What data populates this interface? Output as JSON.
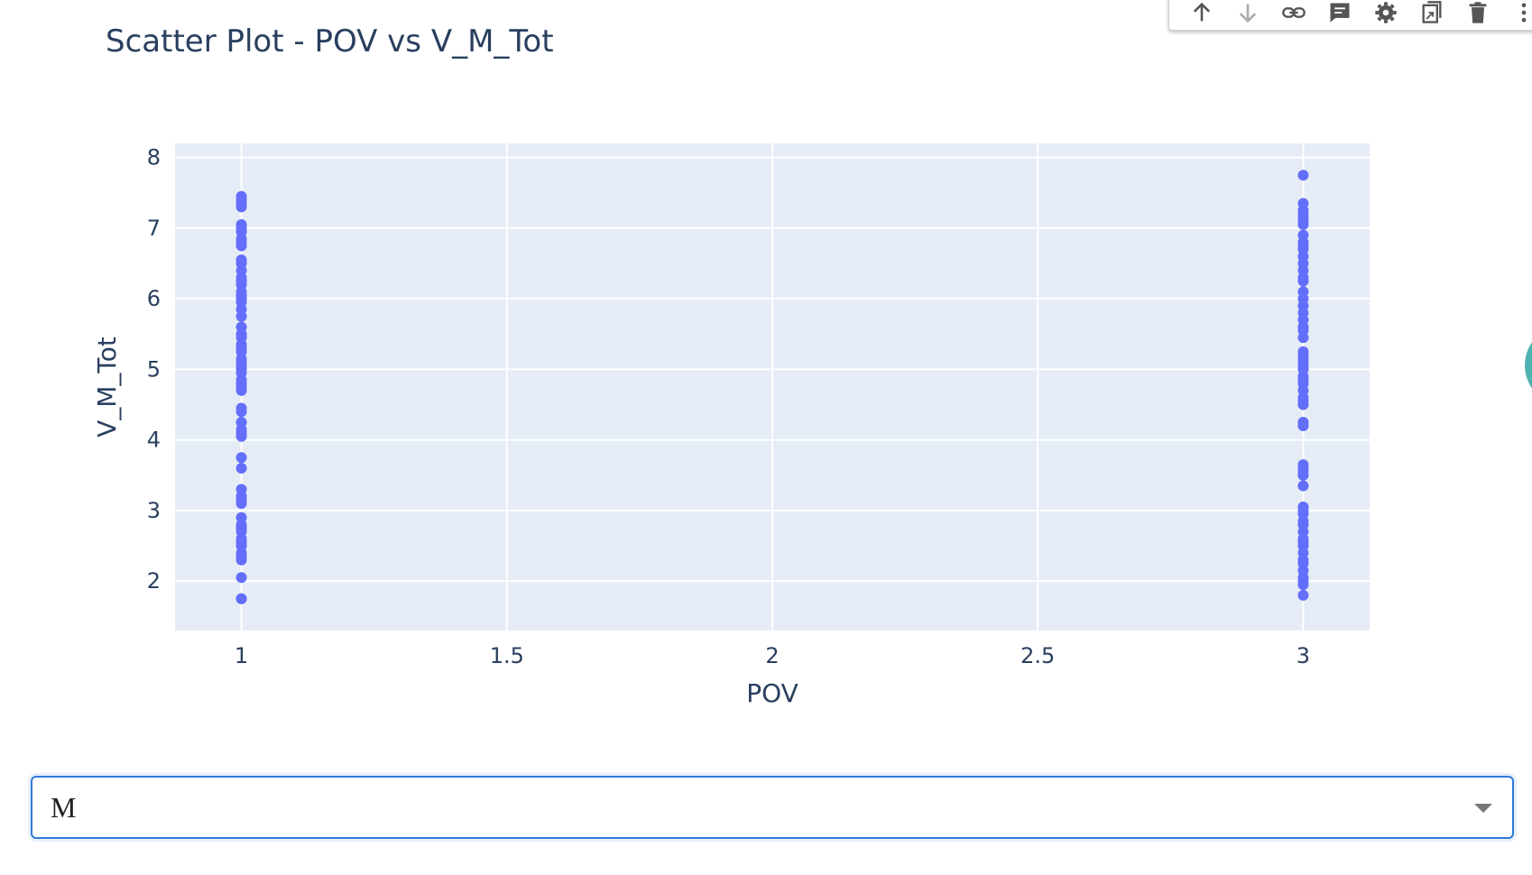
{
  "toolbar": {
    "icons": [
      "arrow-up-icon",
      "arrow-down-icon",
      "link-icon",
      "comment-icon",
      "gear-icon",
      "copy-icon",
      "trash-icon",
      "more-icon"
    ]
  },
  "dropdown": {
    "selected": "M"
  },
  "colors": {
    "marker": "#636efa",
    "plot_bg": "#e5ecf6",
    "grid": "#ffffff",
    "text": "#2a3f5f",
    "dropdown_border": "#2f7bd6",
    "fab": "#4fb3b0"
  },
  "chart_data": {
    "type": "scatter",
    "title": "Scatter Plot - POV vs V_M_Tot",
    "xlabel": "POV",
    "ylabel": "V_M_Tot",
    "xlim": [
      0.875,
      3.125
    ],
    "ylim": [
      1.3,
      8.2
    ],
    "x_ticks": [
      1,
      1.5,
      2,
      2.5,
      3
    ],
    "x_tick_labels": [
      "1",
      "1.5",
      "2",
      "2.5",
      "3"
    ],
    "y_ticks": [
      2,
      3,
      4,
      5,
      6,
      7,
      8
    ],
    "y_tick_labels": [
      "2",
      "3",
      "4",
      "5",
      "6",
      "7",
      "8"
    ],
    "grid": true,
    "series": [
      {
        "x": [
          1,
          1,
          1,
          1,
          1,
          1,
          1,
          1,
          1,
          1,
          1,
          1,
          1,
          1,
          1,
          1,
          1,
          1,
          1,
          1,
          1,
          1,
          1,
          1,
          1,
          1,
          1,
          1,
          1,
          1,
          1,
          1,
          1,
          1,
          1,
          1,
          1,
          1,
          1,
          1,
          1,
          1,
          1,
          1,
          1,
          1,
          1,
          1,
          1,
          1,
          1,
          1,
          1,
          1,
          1,
          1,
          1,
          1,
          1,
          1,
          1,
          1
        ],
        "y": [
          1.75,
          2.05,
          2.3,
          2.4,
          2.5,
          2.6,
          2.7,
          2.8,
          2.9,
          3.1,
          3.2,
          3.3,
          3.6,
          3.75,
          4.05,
          4.15,
          4.25,
          4.4,
          4.45,
          4.7,
          4.75,
          4.85,
          4.95,
          5.0,
          5.1,
          5.15,
          5.25,
          5.35,
          5.5,
          5.6,
          5.75,
          5.85,
          6.0,
          6.1,
          6.2,
          6.3,
          6.4,
          6.55,
          6.75,
          6.85,
          6.95,
          7.05,
          7.3,
          7.35,
          7.45,
          1.75,
          2.35,
          2.55,
          2.75,
          3.15,
          4.1,
          4.8,
          5.05,
          5.3,
          5.45,
          5.95,
          6.05,
          6.25,
          6.5,
          6.8,
          7.0,
          7.4
        ]
      },
      {
        "x": [
          3,
          3,
          3,
          3,
          3,
          3,
          3,
          3,
          3,
          3,
          3,
          3,
          3,
          3,
          3,
          3,
          3,
          3,
          3,
          3,
          3,
          3,
          3,
          3,
          3,
          3,
          3,
          3,
          3,
          3,
          3,
          3,
          3,
          3,
          3,
          3,
          3,
          3,
          3,
          3,
          3,
          3,
          3,
          3,
          3,
          3,
          3,
          3,
          3,
          3,
          3,
          3,
          3,
          3,
          3,
          3,
          3,
          3,
          3,
          3,
          3
        ],
        "y": [
          1.8,
          1.95,
          2.05,
          2.15,
          2.3,
          2.4,
          2.55,
          2.6,
          2.7,
          2.85,
          2.95,
          3.05,
          3.35,
          3.5,
          3.55,
          3.65,
          4.2,
          4.25,
          4.5,
          4.6,
          4.7,
          4.8,
          4.9,
          5.0,
          5.05,
          5.15,
          5.25,
          5.45,
          5.55,
          5.7,
          5.8,
          5.9,
          6.1,
          6.3,
          6.4,
          6.5,
          6.6,
          6.7,
          6.8,
          6.9,
          7.1,
          7.15,
          7.25,
          7.35,
          7.75,
          2.0,
          2.25,
          2.5,
          2.8,
          3.0,
          3.6,
          4.55,
          4.85,
          5.1,
          5.2,
          5.6,
          6.0,
          6.25,
          6.75,
          7.05,
          7.2
        ]
      }
    ]
  }
}
